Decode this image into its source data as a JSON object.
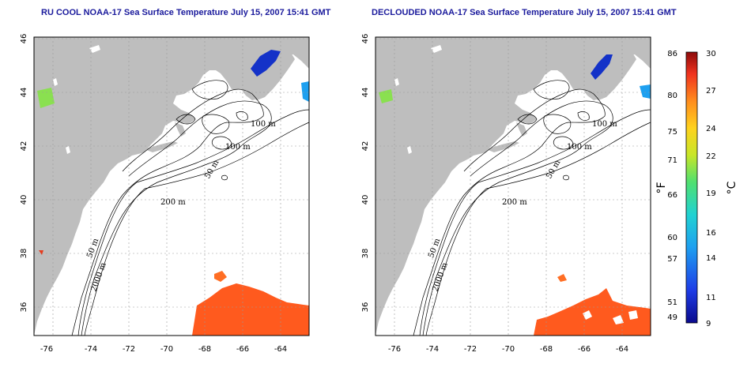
{
  "maps": [
    {
      "title": "RU COOL NOAA-17 Sea Surface Temperature July 15, 2007 15:41 GMT"
    },
    {
      "title": "DECLOUDED NOAA-17 Sea Surface Temperature July 15, 2007 15:41 GMT"
    }
  ],
  "axes": {
    "x_ticks": [
      "-76",
      "-74",
      "-72",
      "-70",
      "-68",
      "-66",
      "-64"
    ],
    "y_ticks": [
      "46",
      "44",
      "42",
      "40",
      "38",
      "36"
    ]
  },
  "contour_labels": [
    "100 m",
    "100 m",
    "50 m",
    "200 m",
    "50 m",
    "2000 m"
  ],
  "colorbar": {
    "fahrenheit_label": "°F",
    "celsius_label": "°C",
    "fahrenheit_ticks": [
      "86",
      "80",
      "75",
      "71",
      "66",
      "60",
      "57",
      "51",
      "49"
    ],
    "celsius_ticks": [
      "30",
      "27",
      "24",
      "22",
      "19",
      "16",
      "14",
      "11",
      "9"
    ]
  },
  "colors": {
    "land": "#bebebe",
    "water": "#ffffff",
    "warm_sst": "#ff5a1e",
    "cold_sst": "#1432c8",
    "title": "#1a1a9c"
  }
}
